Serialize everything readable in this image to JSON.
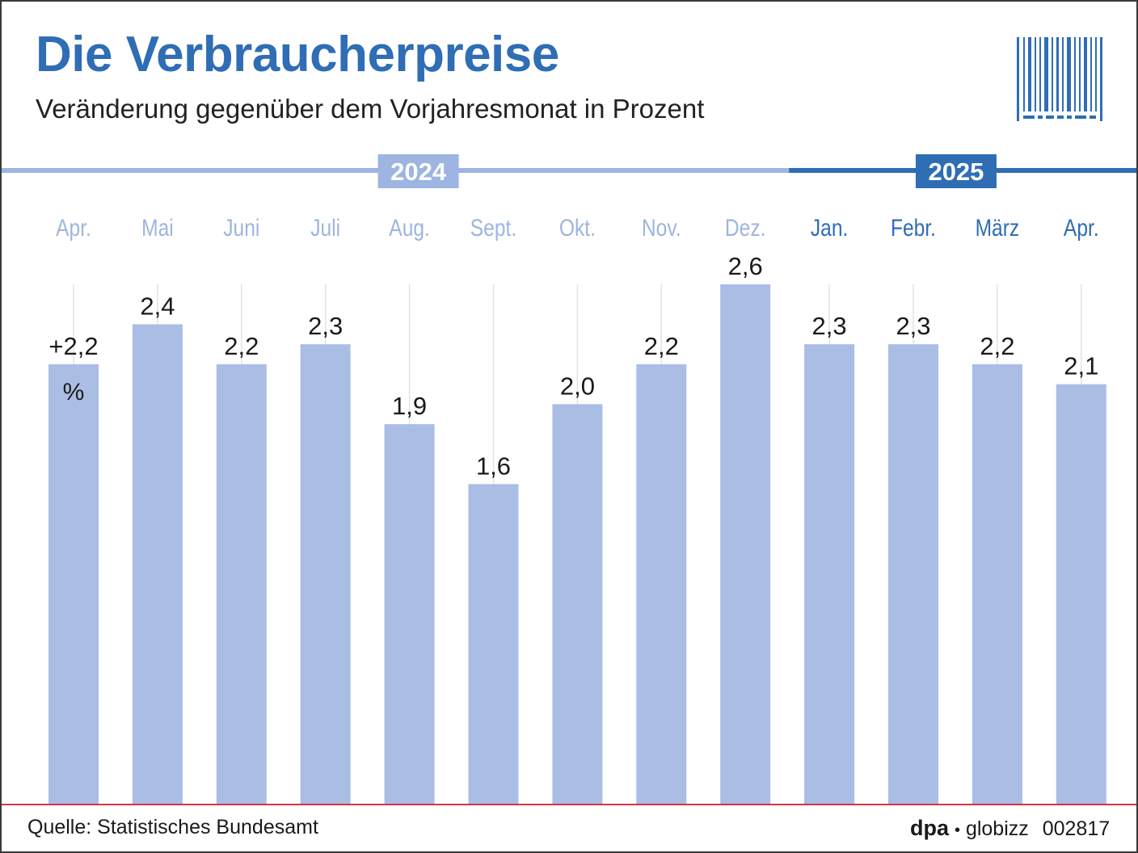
{
  "header": {
    "title": "Die Verbraucherpreise",
    "subtitle": "Veränderung gegenüber dem Vorjahresmonat in Prozent"
  },
  "logo_icon": "barcode-icon",
  "chart_data": {
    "type": "bar",
    "title": "Die Verbraucherpreise",
    "subtitle": "Veränderung gegenüber dem Vorjahresmonat in Prozent",
    "unit": "%",
    "categories": [
      "Apr.",
      "Mai",
      "Juni",
      "Juli",
      "Aug.",
      "Sept.",
      "Okt.",
      "Nov.",
      "Dez.",
      "Jan.",
      "Febr.",
      "März",
      "Apr."
    ],
    "years": [
      "2024",
      "2024",
      "2024",
      "2024",
      "2024",
      "2024",
      "2024",
      "2024",
      "2024",
      "2025",
      "2025",
      "2025",
      "2025"
    ],
    "values": [
      2.2,
      2.4,
      2.2,
      2.3,
      1.9,
      1.6,
      2.0,
      2.2,
      2.6,
      2.3,
      2.3,
      2.2,
      2.1
    ],
    "value_labels": [
      "+2,2",
      "2,4",
      "2,2",
      "2,3",
      "1,9",
      "1,6",
      "2,0",
      "2,2",
      "2,6",
      "2,3",
      "2,3",
      "2,2",
      "2,1"
    ],
    "year_labels": [
      "2024",
      "2025"
    ],
    "ylim": [
      0,
      2.6
    ],
    "grid": true,
    "colors": {
      "bar": "#aabde4",
      "year_2024": "#9db5e0",
      "year_2025": "#2f6db5",
      "baseline": "#d0364a",
      "gridline": "#e3e3e3"
    }
  },
  "footer": {
    "source": "Quelle: Statistisches Bundesamt",
    "agency": "dpa",
    "separator": "•",
    "service": "globizz",
    "code": "002817"
  }
}
